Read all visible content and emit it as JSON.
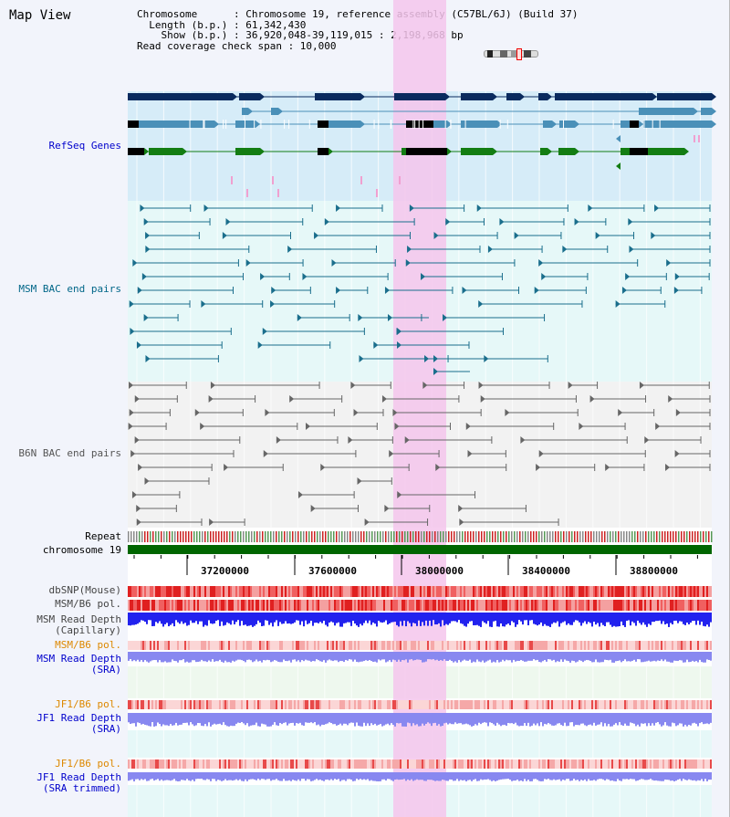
{
  "header": {
    "title": "Map View",
    "chromosome_line": "Chromosome      : Chromosome 19, reference assembly (C57BL/6J) (Build 37)",
    "length_line": "  Length (b.p.) : 61,342,430",
    "show_line": "    Show (b.p.) : 36,920,048-39,119,015 : 2,198,968 bp",
    "span_line": "Read coverage check span : 10,000"
  },
  "tracks": [
    {
      "key": "refseq",
      "label": "RefSeq Genes",
      "color": "#0000cc"
    },
    {
      "key": "msm_bac",
      "label": "MSM BAC end pairs",
      "color": "#006688"
    },
    {
      "key": "b6n_bac",
      "label": "B6N BAC end pairs",
      "color": "#555555"
    },
    {
      "key": "repeat",
      "label": "Repeat",
      "color": "#000000"
    },
    {
      "key": "chrom",
      "label": "chromosome 19",
      "color": "#000000"
    },
    {
      "key": "dbsnp",
      "label": "dbSNP(Mouse)",
      "color": "#444444"
    },
    {
      "key": "msmpol",
      "label": "MSM/B6 pol.",
      "color": "#444444"
    },
    {
      "key": "msmdepth_cap",
      "label": "MSM Read Depth\n(Capillary)",
      "color": "#444444"
    },
    {
      "key": "msmpol2",
      "label": "MSM/B6 pol.",
      "color": "#dd8800"
    },
    {
      "key": "msmdepth_sra",
      "label": "MSM Read Depth\n(SRA)",
      "color": "#0000cc"
    },
    {
      "key": "jf1pol",
      "label": "JF1/B6 pol.",
      "color": "#dd8800"
    },
    {
      "key": "jf1depth_sra",
      "label": "JF1 Read Depth\n(SRA)",
      "color": "#0000cc"
    },
    {
      "key": "jf1pol2",
      "label": "JF1/B6 pol.",
      "color": "#dd8800"
    },
    {
      "key": "jf1depth_trim",
      "label": "JF1 Read Depth\n(SRA trimmed)",
      "color": "#0000cc"
    }
  ],
  "axis": {
    "ticks": [
      "37200000",
      "37600000",
      "38000000",
      "38400000",
      "38800000"
    ]
  },
  "colors": {
    "refseq_bg": "#d6ecf8",
    "msm_bg": "#e6f8f8",
    "b6n_bg": "#f2f2f2",
    "highlight": "#f5c6ec",
    "chromosome": "#006600",
    "depth_blue": "#2222ee",
    "depth_light": "#8888f0"
  }
}
